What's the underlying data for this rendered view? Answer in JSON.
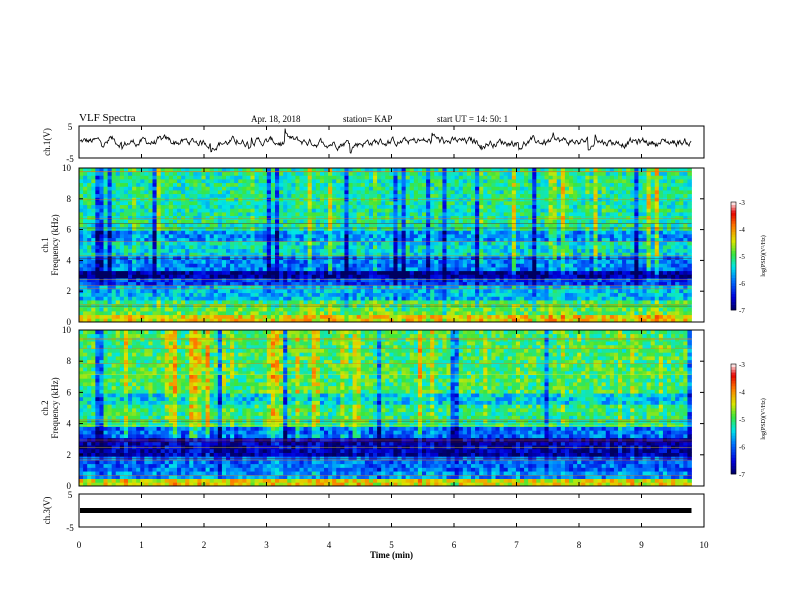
{
  "header": {
    "title": "VLF Spectra",
    "date": "Apr. 18, 2018",
    "station": "station= KAP",
    "start": "start  UT  =   14: 50: 1"
  },
  "chart_data": [
    {
      "type": "line",
      "panel": "waveform-ch1",
      "ylabel": "ch.1(V)",
      "yticks": [
        "5",
        "-5"
      ],
      "ylim": [
        -5,
        5
      ],
      "xlim": [
        0,
        10
      ],
      "data_xrange": [
        0,
        9.8
      ],
      "series": [
        {
          "values_description_free": true,
          "mean": 0,
          "amplitude": 1.2
        }
      ],
      "color": "#000000"
    },
    {
      "type": "heatmap",
      "panel": "spectrogram-ch1",
      "ylabel": "ch.1\nFrequency  (kHz)",
      "yticks": [
        "0",
        "2",
        "4",
        "6",
        "8",
        "10"
      ],
      "ylim": [
        0,
        10
      ],
      "xlim": [
        0,
        10
      ],
      "data_xrange": [
        0,
        9.8
      ],
      "colorbar": {
        "ticks": [
          "-3",
          "-4",
          "-5",
          "-6",
          "-7"
        ],
        "range": [
          -7,
          -3
        ],
        "label": "log(PSD)(V²/Hz)"
      },
      "bands": [
        {
          "from": 0,
          "to": 0.5,
          "level": -4.3
        },
        {
          "from": 0.5,
          "to": 1.0,
          "level": -4.9
        },
        {
          "from": 1.0,
          "to": 1.5,
          "level": -5.0
        },
        {
          "from": 1.5,
          "to": 2.3,
          "level": -5.6
        },
        {
          "from": 2.3,
          "to": 2.8,
          "level": -6.2
        },
        {
          "from": 2.8,
          "to": 3.3,
          "level": -6.8
        },
        {
          "from": 3.3,
          "to": 4.3,
          "level": -5.9
        },
        {
          "from": 4.3,
          "to": 5.2,
          "level": -5.4
        },
        {
          "from": 5.2,
          "to": 6.0,
          "level": -5.8
        },
        {
          "from": 6.0,
          "to": 10.0,
          "level": -5.2
        }
      ]
    },
    {
      "type": "heatmap",
      "panel": "spectrogram-ch2",
      "ylabel": "ch.2\nFrequency  (kHz)",
      "yticks": [
        "0",
        "2",
        "4",
        "6",
        "8",
        "10"
      ],
      "ylim": [
        0,
        10
      ],
      "xlim": [
        0,
        10
      ],
      "data_xrange": [
        0,
        9.8
      ],
      "colorbar": {
        "ticks": [
          "-3",
          "-4",
          "-5",
          "-6",
          "-7"
        ],
        "range": [
          -7,
          -3
        ],
        "label": "log(PSD)(V²/Hz)"
      },
      "bands": [
        {
          "from": 0,
          "to": 0.4,
          "level": -4.4
        },
        {
          "from": 0.4,
          "to": 1.0,
          "level": -5.8
        },
        {
          "from": 1.0,
          "to": 1.8,
          "level": -6.0
        },
        {
          "from": 1.8,
          "to": 3.0,
          "level": -6.7
        },
        {
          "from": 3.0,
          "to": 3.8,
          "level": -6.0
        },
        {
          "from": 3.8,
          "to": 5.2,
          "level": -5.1
        },
        {
          "from": 5.2,
          "to": 6.0,
          "level": -5.5
        },
        {
          "from": 6.0,
          "to": 10.0,
          "level": -5.0
        }
      ]
    },
    {
      "type": "line",
      "panel": "waveform-ch3",
      "ylabel": "ch.3(V)",
      "yticks": [
        "5",
        "-5"
      ],
      "ylim": [
        -5,
        5
      ],
      "xlim": [
        0,
        10
      ],
      "data_xrange": [
        0,
        9.8
      ],
      "series": [
        {
          "constant": 0
        }
      ],
      "color": "#000000"
    }
  ],
  "xaxis": {
    "label": "Time  (min)",
    "ticks": [
      "0",
      "1",
      "2",
      "3",
      "4",
      "5",
      "6",
      "7",
      "8",
      "9",
      "10"
    ],
    "range": [
      0,
      10
    ]
  }
}
